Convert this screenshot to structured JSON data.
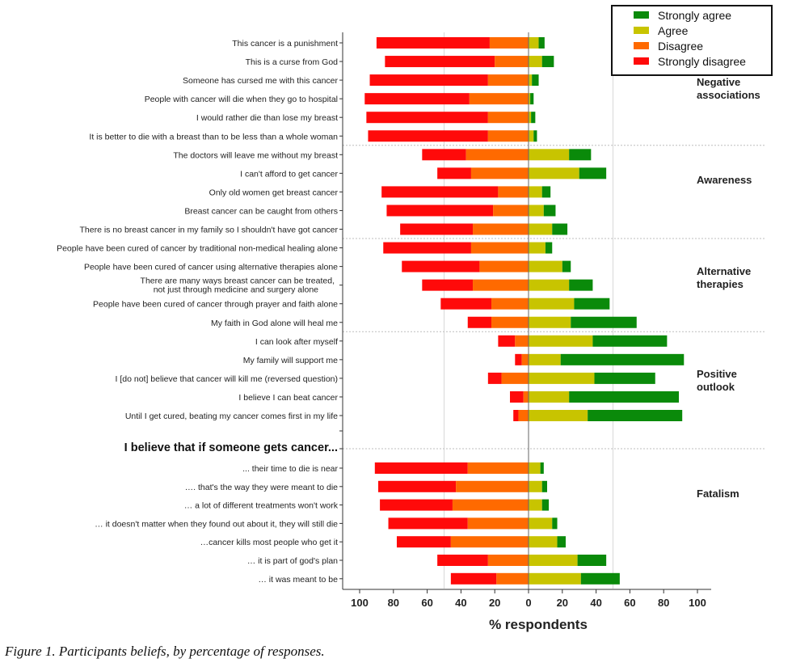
{
  "chart_data": {
    "type": "bar",
    "subtype": "diverging-stacked-horizontal",
    "xlabel": "% respondents",
    "xlim": [
      -100,
      100
    ],
    "xticks": [
      -100,
      -80,
      -60,
      -40,
      -20,
      0,
      20,
      40,
      60,
      80,
      100
    ],
    "xtick_labels": [
      "100",
      "80",
      "60",
      "40",
      "20",
      "0",
      "20",
      "40",
      "60",
      "80",
      "100"
    ],
    "grid": "vertical lines at ±50",
    "legend": {
      "placement": "top-right",
      "entries": [
        {
          "name": "Strongly agree",
          "color": "#0a8a0a"
        },
        {
          "name": "Agree",
          "color": "#c8c400"
        },
        {
          "name": "Disagree",
          "color": "#ff6a00"
        },
        {
          "name": "Strongly disagree",
          "color": "#ff0a0a"
        }
      ]
    },
    "series_order": [
      "Strongly disagree",
      "Disagree",
      "Agree",
      "Strongly agree"
    ],
    "groups": [
      {
        "name": "Negative associations",
        "label_lines": [
          "Negative",
          "associations"
        ],
        "rows": [
          0,
          5
        ]
      },
      {
        "name": "Awareness",
        "label_lines": [
          "Awareness"
        ],
        "rows": [
          6,
          10
        ]
      },
      {
        "name": "Alternative therapies",
        "label_lines": [
          "Alternative",
          "therapies"
        ],
        "rows": [
          11,
          15
        ]
      },
      {
        "name": "Positive outlook",
        "label_lines": [
          "Positive",
          "outlook"
        ],
        "rows": [
          16,
          20
        ]
      },
      {
        "name": "Fatalism",
        "label_lines": [
          "Fatalism"
        ],
        "rows": [
          21,
          27
        ]
      }
    ],
    "subheading": "I believe that if someone gets cancer...",
    "categories": [
      {
        "label": [
          "This cancer is a punishment"
        ],
        "strongly_disagree": 67,
        "disagree": 23,
        "agree": 6,
        "strongly_agree": 3.5
      },
      {
        "label": [
          "This is a curse from God"
        ],
        "strongly_disagree": 65,
        "disagree": 20,
        "agree": 8,
        "strongly_agree": 7
      },
      {
        "label": [
          "Someone has cursed me with this cancer"
        ],
        "strongly_disagree": 70,
        "disagree": 24,
        "agree": 2,
        "strongly_agree": 4
      },
      {
        "label": [
          "People with cancer will die when they go to hospital"
        ],
        "strongly_disagree": 62,
        "disagree": 35,
        "agree": 1,
        "strongly_agree": 2
      },
      {
        "label": [
          "I would rather die than lose my breast"
        ],
        "strongly_disagree": 72,
        "disagree": 24,
        "agree": 1.5,
        "strongly_agree": 2.5
      },
      {
        "label": [
          "It is better to die with a breast than to be less than a whole woman"
        ],
        "strongly_disagree": 71,
        "disagree": 24,
        "agree": 3,
        "strongly_agree": 2
      },
      {
        "label": [
          "The doctors will leave me without my breast"
        ],
        "strongly_disagree": 26,
        "disagree": 37,
        "agree": 24,
        "strongly_agree": 13
      },
      {
        "label": [
          "I can't afford to get cancer"
        ],
        "strongly_disagree": 20,
        "disagree": 34,
        "agree": 30,
        "strongly_agree": 16
      },
      {
        "label": [
          "Only old women get breast cancer"
        ],
        "strongly_disagree": 69,
        "disagree": 18,
        "agree": 8,
        "strongly_agree": 5
      },
      {
        "label": [
          "Breast cancer can be caught from others"
        ],
        "strongly_disagree": 63,
        "disagree": 21,
        "agree": 9,
        "strongly_agree": 7
      },
      {
        "label": [
          "There is no breast cancer in my family so I shouldn't have got cancer"
        ],
        "strongly_disagree": 43,
        "disagree": 33,
        "agree": 14,
        "strongly_agree": 9
      },
      {
        "label": [
          "People have been cured of cancer by traditional non-medical healing alone"
        ],
        "strongly_disagree": 52,
        "disagree": 34,
        "agree": 10,
        "strongly_agree": 4
      },
      {
        "label": [
          "People have been cured of cancer using alternative therapies alone"
        ],
        "strongly_disagree": 46,
        "disagree": 29,
        "agree": 20,
        "strongly_agree": 5
      },
      {
        "label": [
          "There are many ways breast cancer can be treated,",
          "not just through medicine and surgery alone"
        ],
        "strongly_disagree": 30,
        "disagree": 33,
        "agree": 24,
        "strongly_agree": 14
      },
      {
        "label": [
          "People have been cured of cancer through prayer and faith alone"
        ],
        "strongly_disagree": 30,
        "disagree": 22,
        "agree": 27,
        "strongly_agree": 21
      },
      {
        "label": [
          "My faith in God alone will heal me"
        ],
        "strongly_disagree": 14,
        "disagree": 22,
        "agree": 25,
        "strongly_agree": 39
      },
      {
        "label": [
          "I can look after myself"
        ],
        "strongly_disagree": 10,
        "disagree": 8,
        "agree": 38,
        "strongly_agree": 44
      },
      {
        "label": [
          "My family will support me"
        ],
        "strongly_disagree": 4,
        "disagree": 4,
        "agree": 19,
        "strongly_agree": 73
      },
      {
        "label": [
          "I [do not] believe that cancer will kill me (reversed question)"
        ],
        "strongly_disagree": 8,
        "disagree": 16,
        "agree": 39,
        "strongly_agree": 36
      },
      {
        "label": [
          "I believe I can beat cancer"
        ],
        "strongly_disagree": 8,
        "disagree": 3,
        "agree": 24,
        "strongly_agree": 65
      },
      {
        "label": [
          "Until I get cured, beating my cancer comes first in my life"
        ],
        "strongly_disagree": 3,
        "disagree": 6,
        "agree": 35,
        "strongly_agree": 56
      },
      {
        "label": [
          "... their time to die is near"
        ],
        "strongly_disagree": 55,
        "disagree": 36,
        "agree": 7,
        "strongly_agree": 2
      },
      {
        "label": [
          "…. that's the way they were meant to die"
        ],
        "strongly_disagree": 46,
        "disagree": 43,
        "agree": 8,
        "strongly_agree": 3
      },
      {
        "label": [
          "… a lot of different treatments won't work"
        ],
        "strongly_disagree": 43,
        "disagree": 45,
        "agree": 8,
        "strongly_agree": 4
      },
      {
        "label": [
          "… it doesn't matter when they found out about it, they will still die"
        ],
        "strongly_disagree": 47,
        "disagree": 36,
        "agree": 14,
        "strongly_agree": 3
      },
      {
        "label": [
          "…cancer kills most people who get it"
        ],
        "strongly_disagree": 32,
        "disagree": 46,
        "agree": 17,
        "strongly_agree": 5
      },
      {
        "label": [
          "… it is part of god's plan"
        ],
        "strongly_disagree": 30,
        "disagree": 24,
        "agree": 29,
        "strongly_agree": 17
      },
      {
        "label": [
          "… it was meant to be"
        ],
        "strongly_disagree": 27,
        "disagree": 19,
        "agree": 31,
        "strongly_agree": 23
      }
    ]
  },
  "caption": "Figure 1. Participants beliefs, by percentage of responses."
}
